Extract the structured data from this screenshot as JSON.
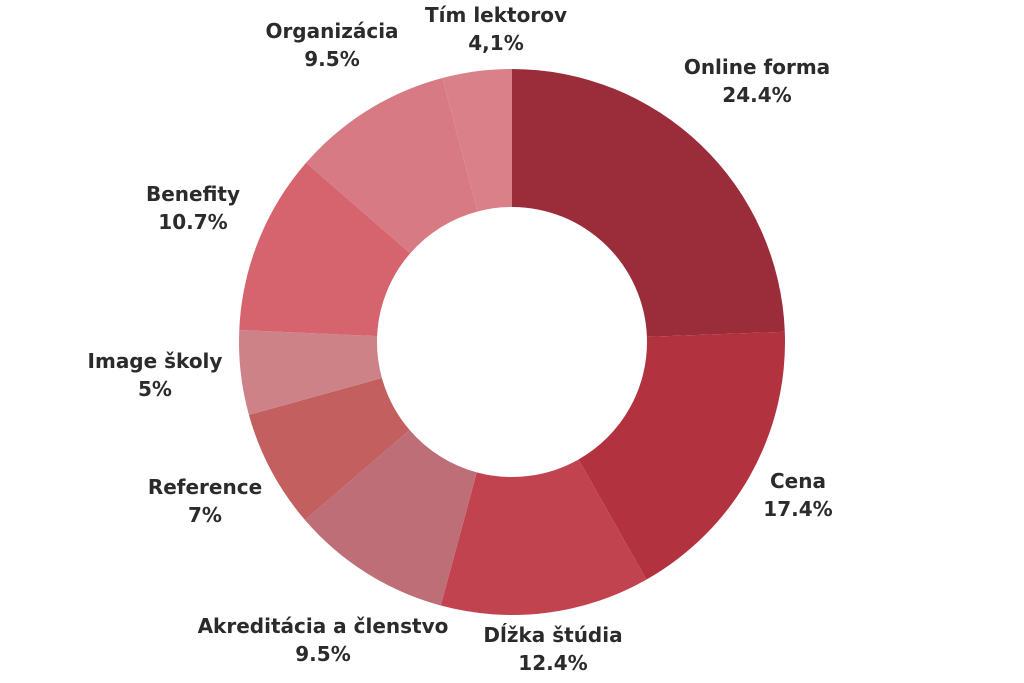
{
  "chart_data": {
    "type": "pie",
    "subtype": "donut",
    "title": "",
    "legend": "none",
    "slices": [
      {
        "name": "Online forma",
        "value_label": "24.4%",
        "value": 24.4,
        "color": "#9b2d3a"
      },
      {
        "name": "Cena",
        "value_label": "17.4%",
        "value": 17.4,
        "color": "#b2323f"
      },
      {
        "name": "Dĺžka štúdia",
        "value_label": "12.4%",
        "value": 12.4,
        "color": "#c1434f"
      },
      {
        "name": "Akreditácia a členstvo",
        "value_label": "9.5%",
        "value": 9.5,
        "color": "#be6e76"
      },
      {
        "name": "Reference",
        "value_label": "7%",
        "value": 7.0,
        "color": "#c35f5e"
      },
      {
        "name": "Image školy",
        "value_label": "5%",
        "value": 5.0,
        "color": "#cd8287"
      },
      {
        "name": "Benefity",
        "value_label": "10.7%",
        "value": 10.7,
        "color": "#d5646e"
      },
      {
        "name": "Organizácia",
        "value_label": "9.5%",
        "value": 9.5,
        "color": "#d77a83"
      },
      {
        "name": "Tím lektorov",
        "value_label": "4,1%",
        "value": 4.1,
        "color": "#d98088"
      }
    ]
  }
}
